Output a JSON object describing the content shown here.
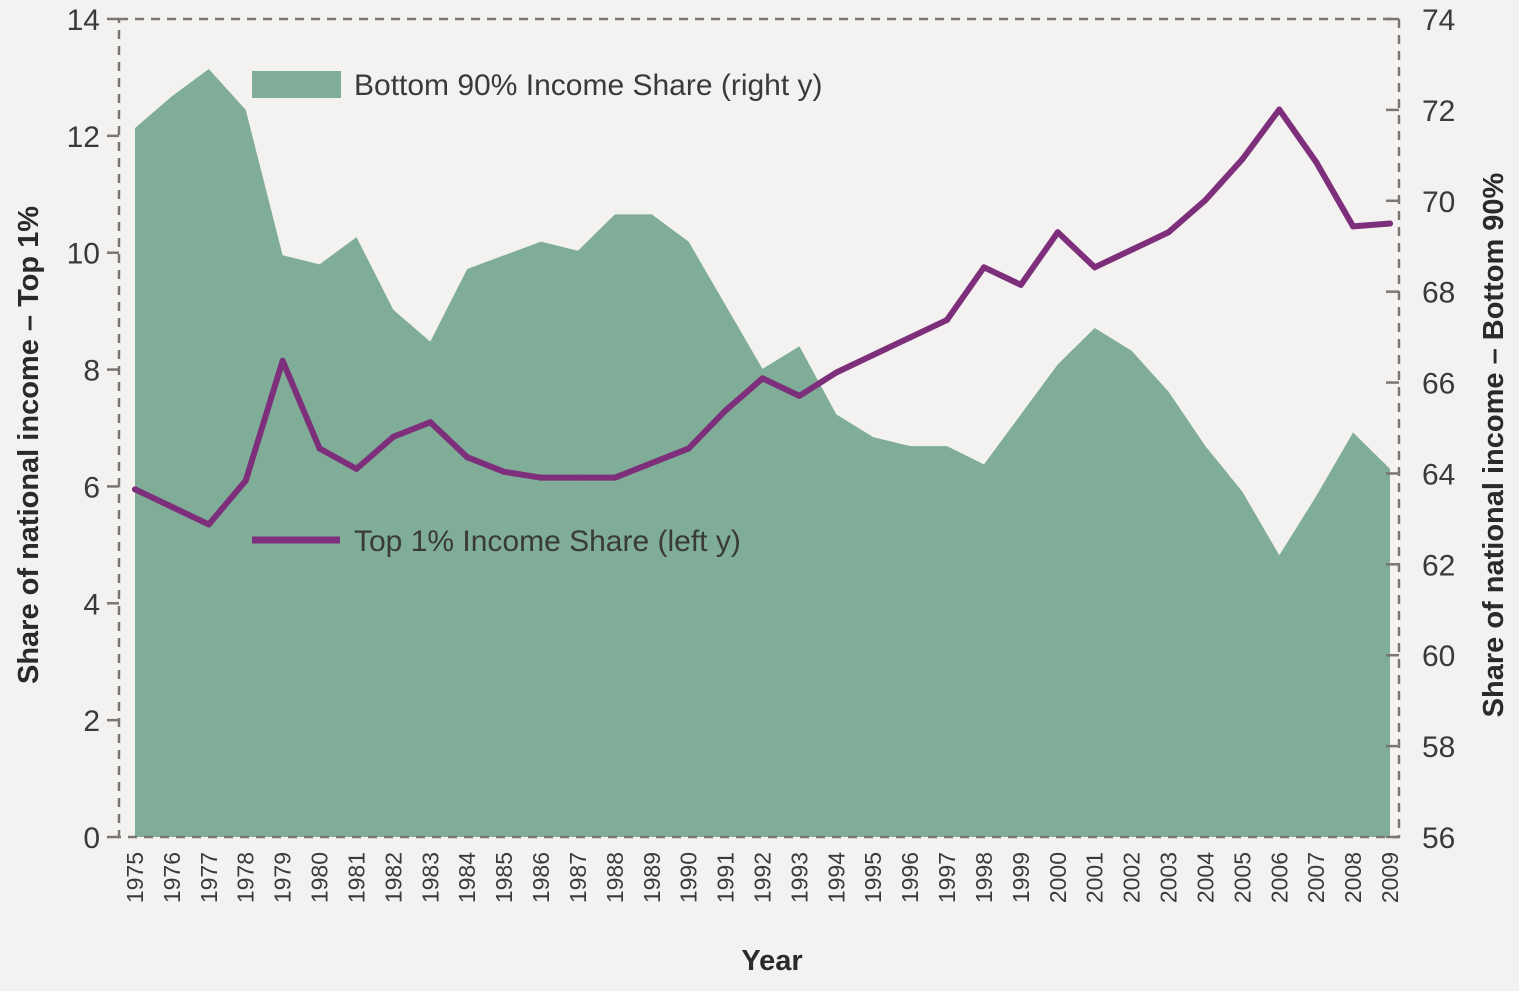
{
  "chart_data": {
    "type": "area+line (dual axis)",
    "xlabel": "Year",
    "ylabel_left": "Share of national income – Top 1%",
    "ylabel_right": "Share of national income – Bottom 90%",
    "ylim_left": [
      0,
      14
    ],
    "ylim_right": [
      56,
      74
    ],
    "yticks_left": [
      "0",
      "2",
      "4",
      "6",
      "8",
      "10",
      "12",
      "14"
    ],
    "yticks_right": [
      "56",
      "58",
      "60",
      "62",
      "64",
      "66",
      "68",
      "70",
      "72",
      "74"
    ],
    "categories": [
      "1975",
      "1976",
      "1977",
      "1978",
      "1979",
      "1980",
      "1981",
      "1982",
      "1983",
      "1984",
      "1985",
      "1986",
      "1987",
      "1988",
      "1989",
      "1990",
      "1991",
      "1992",
      "1993",
      "1994",
      "1995",
      "1996",
      "1997",
      "1998",
      "1999",
      "2000",
      "2001",
      "2002",
      "2003",
      "2004",
      "2005",
      "2006",
      "2007",
      "2008",
      "2009"
    ],
    "series": [
      {
        "name": "Bottom 90% Income Share (right y)",
        "axis": "right",
        "kind": "area",
        "color": "#7fad98",
        "values": [
          71.6,
          72.3,
          72.9,
          72.0,
          68.8,
          68.6,
          69.2,
          67.6,
          66.9,
          68.5,
          68.8,
          69.1,
          68.9,
          69.7,
          69.7,
          69.1,
          67.7,
          66.3,
          66.8,
          65.3,
          64.8,
          64.6,
          64.6,
          64.2,
          65.3,
          66.4,
          67.2,
          66.7,
          65.8,
          64.6,
          63.6,
          62.2,
          63.5,
          64.9,
          64.1
        ]
      },
      {
        "name": "Top 1% Income Share (left y)",
        "axis": "left",
        "kind": "line",
        "color": "#7e2f7c",
        "values": [
          5.95,
          5.65,
          5.35,
          6.1,
          8.15,
          6.65,
          6.3,
          6.85,
          7.1,
          6.5,
          6.25,
          6.15,
          6.15,
          6.15,
          6.4,
          6.65,
          7.3,
          7.85,
          7.55,
          7.95,
          8.25,
          8.55,
          8.85,
          9.75,
          9.45,
          10.35,
          9.75,
          10.05,
          10.35,
          10.9,
          11.6,
          12.45,
          11.55,
          10.45,
          10.5
        ]
      }
    ]
  },
  "legend": {
    "area_label": "Bottom 90% Income Share (right y)",
    "line_label": "Top 1% Income Share (left y)"
  }
}
